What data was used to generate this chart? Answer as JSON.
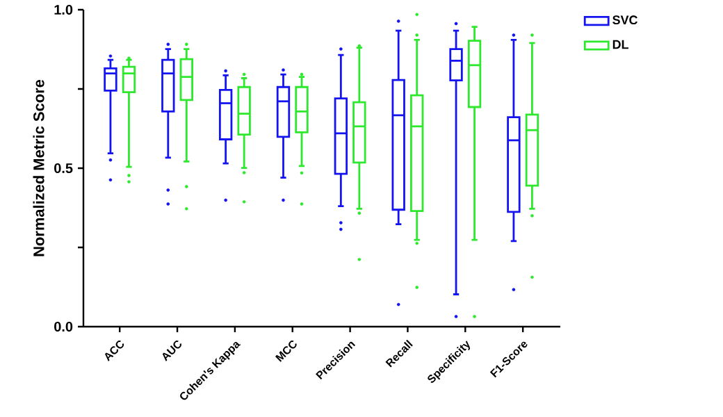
{
  "chart_data": {
    "type": "box",
    "ylabel": "Normalized Metric Score",
    "categories": [
      "ACC",
      "AUC",
      "Cohen's Kappa",
      "MCC",
      "Precision",
      "Recall",
      "Specificity",
      "F1-Score"
    ],
    "ylim": [
      0,
      1
    ],
    "yticks": [
      {
        "value": 0,
        "label": "0.0"
      },
      {
        "value": 0.25,
        "label": null
      },
      {
        "value": 0.5,
        "label": "0.5"
      },
      {
        "value": 0.75,
        "label": null
      },
      {
        "value": 1,
        "label": "1.0"
      }
    ],
    "legend": "top right",
    "series": [
      {
        "name": "SVC",
        "color": "#1414f0",
        "boxes": [
          {
            "low": 0.547,
            "q1": 0.745,
            "median": 0.799,
            "q3": 0.815,
            "high": 0.842,
            "outliers": [
              0.854,
              0.526,
              0.463
            ]
          },
          {
            "low": 0.533,
            "q1": 0.679,
            "median": 0.799,
            "q3": 0.842,
            "high": 0.876,
            "outliers": [
              0.891,
              0.431,
              0.387
            ]
          },
          {
            "low": 0.515,
            "q1": 0.591,
            "median": 0.705,
            "q3": 0.747,
            "high": 0.793,
            "outliers": [
              0.807,
              0.399
            ]
          },
          {
            "low": 0.47,
            "q1": 0.599,
            "median": 0.711,
            "q3": 0.756,
            "high": 0.796,
            "outliers": [
              0.81,
              0.399
            ]
          },
          {
            "low": 0.38,
            "q1": 0.482,
            "median": 0.61,
            "q3": 0.72,
            "high": 0.857,
            "outliers": [
              0.876,
              0.328,
              0.307
            ]
          },
          {
            "low": 0.323,
            "q1": 0.369,
            "median": 0.667,
            "q3": 0.778,
            "high": 0.934,
            "outliers": [
              0.964,
              0.07
            ]
          },
          {
            "low": 0.102,
            "q1": 0.777,
            "median": 0.839,
            "q3": 0.876,
            "high": 0.934,
            "outliers": [
              0.956,
              0.032
            ]
          },
          {
            "low": 0.27,
            "q1": 0.362,
            "median": 0.588,
            "q3": 0.661,
            "high": 0.905,
            "outliers": [
              0.92,
              0.117
            ]
          }
        ]
      },
      {
        "name": "DL",
        "color": "#2ee82e",
        "boxes": [
          {
            "low": 0.504,
            "q1": 0.74,
            "median": 0.799,
            "q3": 0.82,
            "high": 0.842,
            "outliers": [
              0.847,
              0.477,
              0.457
            ]
          },
          {
            "low": 0.521,
            "q1": 0.715,
            "median": 0.788,
            "q3": 0.844,
            "high": 0.876,
            "outliers": [
              0.891,
              0.442,
              0.372
            ]
          },
          {
            "low": 0.501,
            "q1": 0.606,
            "median": 0.672,
            "q3": 0.756,
            "high": 0.784,
            "outliers": [
              0.796,
              0.486,
              0.394
            ]
          },
          {
            "low": 0.507,
            "q1": 0.613,
            "median": 0.679,
            "q3": 0.756,
            "high": 0.788,
            "outliers": [
              0.796,
              0.485,
              0.387
            ]
          },
          {
            "low": 0.372,
            "q1": 0.518,
            "median": 0.632,
            "q3": 0.708,
            "high": 0.88,
            "outliers": [
              0.886,
              0.358,
              0.212
            ]
          },
          {
            "low": 0.274,
            "q1": 0.365,
            "median": 0.632,
            "q3": 0.73,
            "high": 0.905,
            "outliers": [
              0.985,
              0.92,
              0.263,
              0.124
            ]
          },
          {
            "low": 0.274,
            "q1": 0.693,
            "median": 0.825,
            "q3": 0.902,
            "high": 0.946,
            "outliers": [
              0.032
            ]
          },
          {
            "low": 0.372,
            "q1": 0.445,
            "median": 0.62,
            "q3": 0.669,
            "high": 0.895,
            "outliers": [
              0.92,
              0.35,
              0.156
            ]
          }
        ]
      }
    ]
  }
}
